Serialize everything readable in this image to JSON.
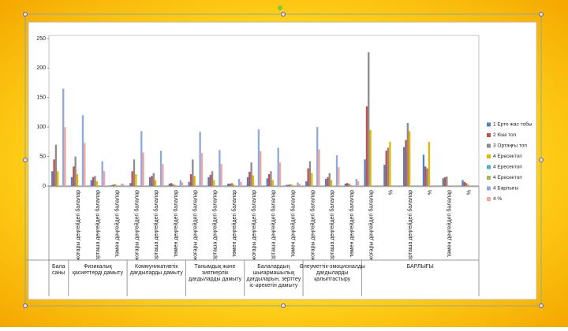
{
  "chart_data": {
    "type": "bar",
    "groups": [
      {
        "name": "Бала саны",
        "categories": [
          null
        ]
      },
      {
        "name": "Физикалық қасиеттерді дамыту",
        "categories": [
          "жоғары деңгейдегі балалар",
          "орташа деңгейдегі балалар",
          "төмен деңгейдегі балалар"
        ]
      },
      {
        "name": "Коммуникативтік дағдыларды дамыту",
        "categories": [
          "жоғары деңгейдегі балалар",
          "орташа деңгейдегі балалар",
          "төмен деңгейдегі балалар"
        ]
      },
      {
        "name": "Танымдық және зияткерлік дағдыларды дамыту",
        "categories": [
          "жоғары деңгейдегі балалар",
          "орташа деңгейдегі балалар",
          "төмен деңгейдегі балалар"
        ]
      },
      {
        "name": "Балалардың шығармашылық дағдыларын, зерттеу іс-әрекетін дамыту",
        "categories": [
          "жоғары деңгейдегі балалар",
          "орташа деңгейдегі балалар",
          "төмен деңгейдегі балалар"
        ]
      },
      {
        "name": "Әлеуметтік-эмоционалды дағдыларды қалыптастыру",
        "categories": [
          "жоғары деңгейдегі балалар",
          "орташа деңгейдегі балалар",
          "төмен деңгейдегі балалар"
        ]
      },
      {
        "name": "БАРЛЫҒЫ",
        "categories": [
          "жоғары деңгейдегі балалар",
          "%",
          "орташа деңгейдегі балалар",
          "%",
          "төмен деңгейдегі балалар",
          "%"
        ]
      }
    ],
    "series": [
      {
        "name": "1 Ерте жас тобы",
        "color": "#4f81bd",
        "values": [
          25,
          15,
          10,
          1,
          5,
          15,
          4,
          7,
          15,
          4,
          15,
          13,
          2,
          8,
          12,
          4,
          45,
          36,
          66,
          53,
          13,
          10
        ]
      },
      {
        "name": "2 Кіші топ",
        "color": "#c0504d",
        "values": [
          45,
          33,
          15,
          2,
          25,
          17,
          5,
          20,
          19,
          4,
          24,
          20,
          2,
          30,
          15,
          5,
          135,
          60,
          78,
          33,
          15,
          7
        ]
      },
      {
        "name": "3 Ортаңғы топ",
        "color": "#8c8c8c",
        "values": [
          70,
          50,
          17,
          3,
          45,
          22,
          3,
          45,
          25,
          5,
          40,
          25,
          3,
          42,
          22,
          4,
          227,
          65,
          107,
          30,
          16,
          5
        ]
      },
      {
        "name": "4 Ересектоп",
        "color": "#e8b400",
        "values": [
          25,
          20,
          8,
          2,
          20,
          10,
          2,
          17,
          10,
          3,
          18,
          10,
          2,
          22,
          10,
          2,
          95,
          75,
          93,
          75,
          0,
          3
        ]
      },
      {
        "name": "4 Ересектоп",
        "color": "#4bacc6",
        "values": [
          0,
          0,
          0,
          0,
          0,
          0,
          0,
          0,
          0,
          0,
          0,
          0,
          0,
          0,
          0,
          0,
          null,
          null,
          null,
          null,
          null,
          null
        ]
      },
      {
        "name": "4 Ересектоп",
        "color": "#9bbb59",
        "values": [
          0,
          0,
          0,
          0,
          0,
          0,
          0,
          0,
          0,
          0,
          0,
          0,
          0,
          0,
          0,
          0,
          null,
          null,
          null,
          null,
          null,
          null
        ]
      },
      {
        "name": "4 Барлығы",
        "color": "#8ea9db",
        "values": [
          165,
          120,
          42,
          4,
          93,
          60,
          10,
          92,
          61,
          12,
          96,
          65,
          6,
          100,
          52,
          12,
          null,
          null,
          null,
          null,
          null,
          null
        ]
      },
      {
        "name": "4  %",
        "color": "#f4a6a0",
        "values": [
          100,
          73,
          25,
          3,
          57,
          37,
          6,
          56,
          37,
          7,
          59,
          40,
          4,
          62,
          32,
          8,
          null,
          null,
          null,
          null,
          null,
          null
        ]
      }
    ],
    "ylim": [
      0,
      250
    ],
    "yticks": [
      0,
      50,
      100,
      150,
      200,
      250
    ],
    "grid": false
  }
}
